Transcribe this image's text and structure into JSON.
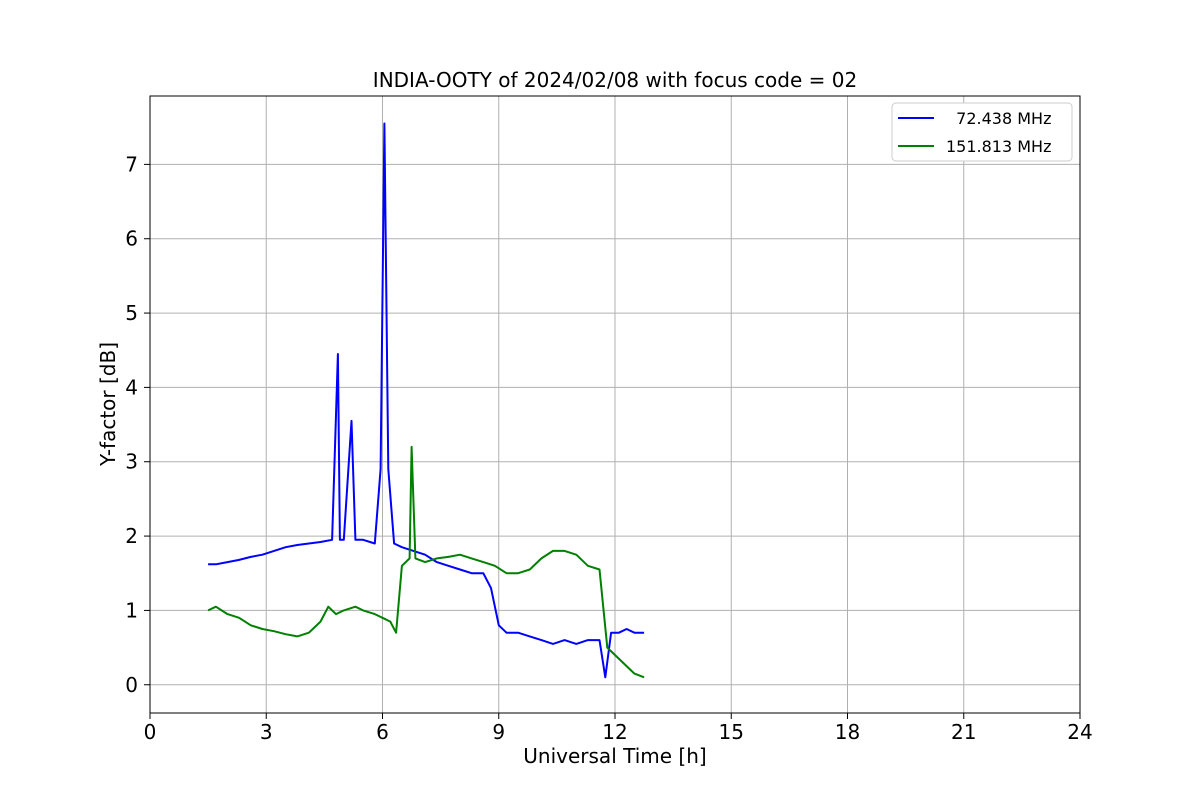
{
  "chart_data": {
    "type": "line",
    "title": "INDIA-OOTY of 2024/02/08 with focus code = 02",
    "xlabel": "Universal Time [h]",
    "ylabel": "Y-factor [dB]",
    "xlim": [
      0,
      24
    ],
    "ylim": [
      -0.38,
      7.92
    ],
    "xticks": [
      0,
      3,
      6,
      9,
      12,
      15,
      18,
      21,
      24
    ],
    "yticks": [
      0,
      1,
      2,
      3,
      4,
      5,
      6,
      7
    ],
    "grid": true,
    "legend_position": "top-right",
    "series": [
      {
        "name": "  72.438 MHz",
        "color": "#0000ff",
        "x": [
          1.5,
          1.7,
          2.0,
          2.3,
          2.6,
          2.9,
          3.2,
          3.5,
          3.8,
          4.1,
          4.4,
          4.7,
          4.85,
          4.9,
          5.0,
          5.2,
          5.3,
          5.5,
          5.8,
          5.95,
          6.05,
          6.15,
          6.3,
          6.5,
          6.8,
          7.1,
          7.4,
          7.7,
          8.0,
          8.3,
          8.6,
          8.8,
          9.0,
          9.2,
          9.5,
          9.8,
          10.1,
          10.4,
          10.7,
          11.0,
          11.3,
          11.6,
          11.75,
          11.9,
          12.1,
          12.3,
          12.5,
          12.75
        ],
        "y": [
          1.62,
          1.62,
          1.65,
          1.68,
          1.72,
          1.75,
          1.8,
          1.85,
          1.88,
          1.9,
          1.92,
          1.95,
          4.45,
          1.95,
          1.95,
          3.55,
          1.95,
          1.95,
          1.9,
          2.9,
          7.55,
          2.9,
          1.9,
          1.85,
          1.8,
          1.75,
          1.65,
          1.6,
          1.55,
          1.5,
          1.5,
          1.3,
          0.8,
          0.7,
          0.7,
          0.65,
          0.6,
          0.55,
          0.6,
          0.55,
          0.6,
          0.6,
          0.1,
          0.7,
          0.7,
          0.75,
          0.7,
          0.7
        ]
      },
      {
        "name": "151.813 MHz",
        "color": "#008000",
        "x": [
          1.5,
          1.7,
          2.0,
          2.3,
          2.6,
          2.9,
          3.2,
          3.5,
          3.8,
          4.1,
          4.4,
          4.6,
          4.8,
          5.0,
          5.3,
          5.5,
          5.8,
          6.0,
          6.2,
          6.35,
          6.5,
          6.7,
          6.75,
          6.85,
          7.1,
          7.4,
          7.7,
          8.0,
          8.3,
          8.6,
          8.9,
          9.2,
          9.5,
          9.8,
          10.1,
          10.4,
          10.7,
          11.0,
          11.3,
          11.6,
          11.8,
          12.0,
          12.2,
          12.5,
          12.75
        ],
        "y": [
          1.0,
          1.05,
          0.95,
          0.9,
          0.8,
          0.75,
          0.72,
          0.68,
          0.65,
          0.7,
          0.85,
          1.05,
          0.95,
          1.0,
          1.05,
          1.0,
          0.95,
          0.9,
          0.85,
          0.7,
          1.6,
          1.7,
          3.2,
          1.7,
          1.65,
          1.7,
          1.72,
          1.75,
          1.7,
          1.65,
          1.6,
          1.5,
          1.5,
          1.55,
          1.7,
          1.8,
          1.8,
          1.75,
          1.6,
          1.55,
          0.5,
          0.4,
          0.3,
          0.15,
          0.1
        ]
      }
    ]
  }
}
